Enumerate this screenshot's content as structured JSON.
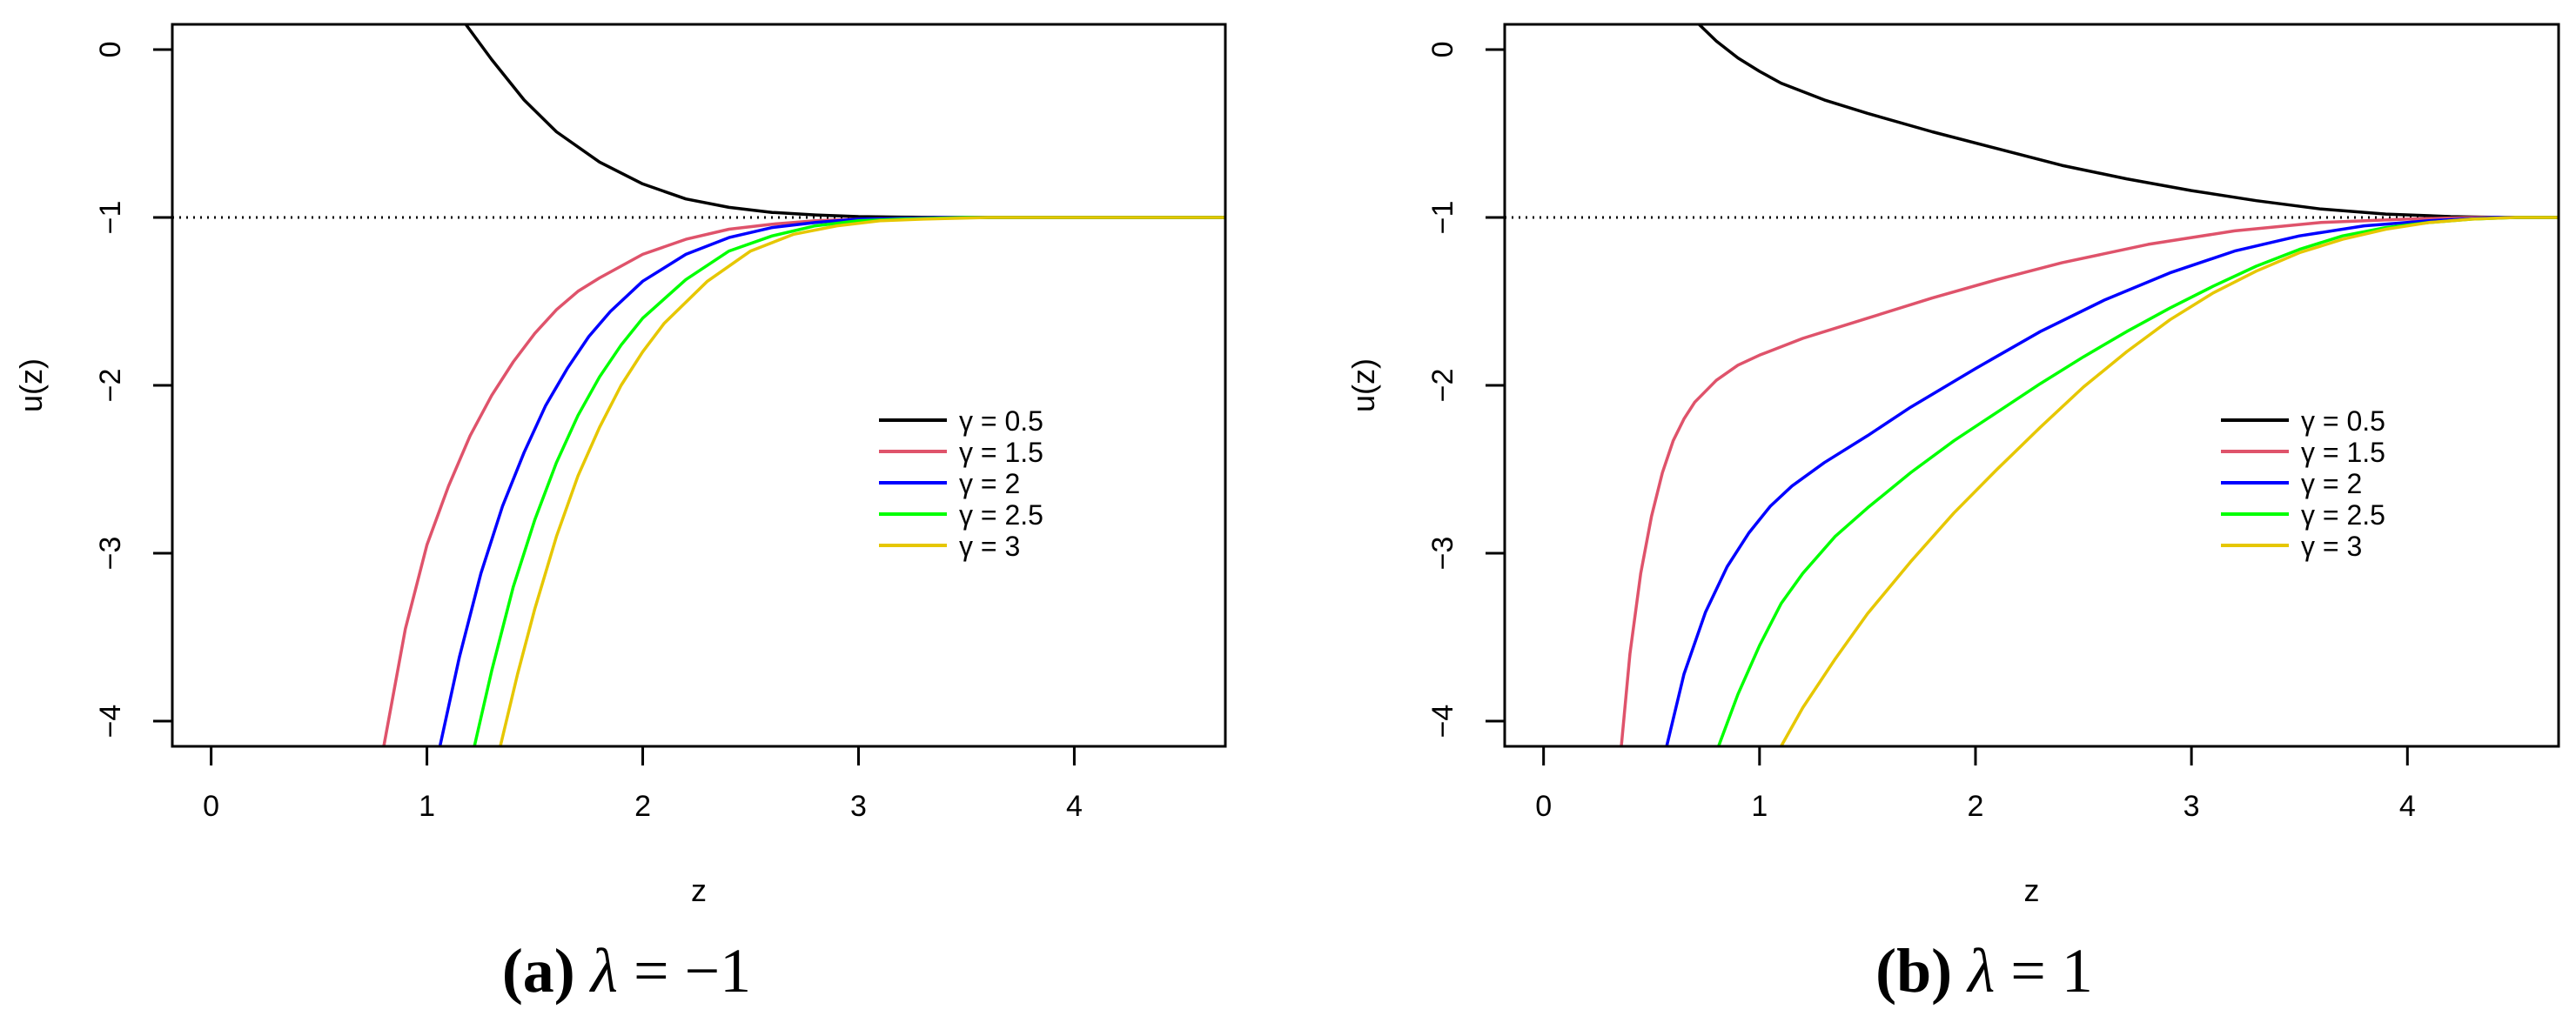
{
  "chart_data": [
    {
      "type": "line",
      "caption": {
        "label": "(a)",
        "symbol": "λ",
        "equals": " = ",
        "value": "−1"
      },
      "xlabel": "z",
      "ylabel": "u(z)",
      "xlim": [
        -0.18,
        4.7
      ],
      "ylim": [
        -4.15,
        0.15
      ],
      "xticks": [
        0,
        1,
        2,
        3,
        4
      ],
      "yticks": [
        0,
        -1,
        -2,
        -3,
        -4
      ],
      "xtick_labels": [
        "0",
        "1",
        "2",
        "3",
        "4"
      ],
      "ytick_labels": [
        "0",
        "−1",
        "−2",
        "−3",
        "−4"
      ],
      "grid": false,
      "legend_position": "right-center",
      "reference_line": {
        "y": -1,
        "style": "dotted"
      },
      "series": [
        {
          "name": "γ = 0.5",
          "color": "#000000",
          "x": [
            1.18,
            1.3,
            1.45,
            1.6,
            1.8,
            2.0,
            2.2,
            2.4,
            2.6,
            2.8,
            3.0,
            3.2,
            3.5,
            4.7
          ],
          "y": [
            0.15,
            -0.06,
            -0.3,
            -0.49,
            -0.67,
            -0.8,
            -0.89,
            -0.94,
            -0.97,
            -0.985,
            -0.995,
            -0.998,
            -1.0,
            -1.0
          ]
        },
        {
          "name": "γ = 1.5",
          "color": "#DF536B",
          "x": [
            0.8,
            0.9,
            1.0,
            1.1,
            1.2,
            1.3,
            1.4,
            1.5,
            1.6,
            1.7,
            1.8,
            2.0,
            2.2,
            2.4,
            2.6,
            2.8,
            3.0,
            3.4,
            4.7
          ],
          "y": [
            -4.15,
            -3.45,
            -2.95,
            -2.6,
            -2.3,
            -2.06,
            -1.86,
            -1.69,
            -1.55,
            -1.44,
            -1.36,
            -1.22,
            -1.13,
            -1.07,
            -1.04,
            -1.02,
            -1.01,
            -1.0,
            -1.0
          ]
        },
        {
          "name": "γ = 2",
          "color": "#0000FF",
          "x": [
            1.06,
            1.15,
            1.25,
            1.35,
            1.45,
            1.55,
            1.65,
            1.75,
            1.85,
            2.0,
            2.2,
            2.4,
            2.6,
            2.8,
            3.0,
            3.4,
            4.7
          ],
          "y": [
            -4.15,
            -3.62,
            -3.12,
            -2.72,
            -2.4,
            -2.12,
            -1.9,
            -1.71,
            -1.56,
            -1.38,
            -1.22,
            -1.12,
            -1.06,
            -1.03,
            -1.01,
            -1.0,
            -1.0
          ]
        },
        {
          "name": "γ = 2.5",
          "color": "#00FF00",
          "x": [
            1.22,
            1.3,
            1.4,
            1.5,
            1.6,
            1.7,
            1.8,
            1.9,
            2.0,
            2.2,
            2.4,
            2.6,
            2.8,
            3.0,
            3.2,
            3.5,
            4.7
          ],
          "y": [
            -4.15,
            -3.7,
            -3.2,
            -2.8,
            -2.46,
            -2.18,
            -1.95,
            -1.76,
            -1.6,
            -1.37,
            -1.2,
            -1.11,
            -1.05,
            -1.02,
            -1.01,
            -1.0,
            -1.0
          ]
        },
        {
          "name": "γ = 3",
          "color": "#E6C700",
          "x": [
            1.34,
            1.42,
            1.5,
            1.6,
            1.7,
            1.8,
            1.9,
            2.0,
            2.1,
            2.3,
            2.5,
            2.7,
            2.9,
            3.1,
            3.3,
            3.6,
            4.7
          ],
          "y": [
            -4.15,
            -3.72,
            -3.33,
            -2.9,
            -2.54,
            -2.25,
            -2.0,
            -1.8,
            -1.63,
            -1.38,
            -1.2,
            -1.1,
            -1.05,
            -1.02,
            -1.01,
            -1.0,
            -1.0
          ]
        }
      ]
    },
    {
      "type": "line",
      "caption": {
        "label": "(b)",
        "symbol": "λ",
        "equals": " = ",
        "value": "1"
      },
      "xlabel": "z",
      "ylabel": "u(z)",
      "xlim": [
        -0.18,
        4.7
      ],
      "ylim": [
        -4.15,
        0.15
      ],
      "xticks": [
        0,
        1,
        2,
        3,
        4
      ],
      "yticks": [
        0,
        -1,
        -2,
        -3,
        -4
      ],
      "xtick_labels": [
        "0",
        "1",
        "2",
        "3",
        "4"
      ],
      "ytick_labels": [
        "0",
        "−1",
        "−2",
        "−3",
        "−4"
      ],
      "grid": false,
      "legend_position": "right-center",
      "reference_line": {
        "y": -1,
        "style": "dotted"
      },
      "series": [
        {
          "name": "γ = 0.5",
          "color": "#000000",
          "x": [
            0.72,
            0.8,
            0.9,
            1.0,
            1.1,
            1.3,
            1.5,
            1.8,
            2.1,
            2.4,
            2.7,
            3.0,
            3.3,
            3.6,
            3.9,
            4.2,
            4.45,
            4.7
          ],
          "y": [
            0.15,
            0.05,
            -0.05,
            -0.13,
            -0.2,
            -0.3,
            -0.38,
            -0.49,
            -0.59,
            -0.69,
            -0.77,
            -0.84,
            -0.9,
            -0.95,
            -0.98,
            -0.995,
            -1.0,
            -1.0
          ]
        },
        {
          "name": "γ = 1.5",
          "color": "#DF536B",
          "x": [
            0.36,
            0.4,
            0.45,
            0.5,
            0.55,
            0.6,
            0.65,
            0.7,
            0.8,
            0.9,
            1.0,
            1.2,
            1.5,
            1.8,
            2.1,
            2.4,
            2.8,
            3.2,
            3.6,
            4.0,
            4.3,
            4.7
          ],
          "y": [
            -4.15,
            -3.6,
            -3.12,
            -2.78,
            -2.52,
            -2.33,
            -2.2,
            -2.1,
            -1.97,
            -1.88,
            -1.82,
            -1.72,
            -1.6,
            -1.48,
            -1.37,
            -1.27,
            -1.16,
            -1.08,
            -1.03,
            -1.01,
            -1.0,
            -1.0
          ]
        },
        {
          "name": "γ = 2",
          "color": "#0000FF",
          "x": [
            0.57,
            0.65,
            0.75,
            0.85,
            0.95,
            1.05,
            1.15,
            1.3,
            1.5,
            1.7,
            2.0,
            2.3,
            2.6,
            2.9,
            3.2,
            3.5,
            3.8,
            4.1,
            4.4,
            4.7
          ],
          "y": [
            -4.15,
            -3.72,
            -3.35,
            -3.08,
            -2.88,
            -2.72,
            -2.6,
            -2.46,
            -2.3,
            -2.13,
            -1.9,
            -1.68,
            -1.49,
            -1.33,
            -1.2,
            -1.11,
            -1.05,
            -1.02,
            -1.0,
            -1.0
          ]
        },
        {
          "name": "γ = 2.5",
          "color": "#00FF00",
          "x": [
            0.81,
            0.9,
            1.0,
            1.1,
            1.2,
            1.35,
            1.5,
            1.7,
            1.9,
            2.1,
            2.3,
            2.5,
            2.7,
            2.9,
            3.1,
            3.3,
            3.5,
            3.7,
            3.9,
            4.1,
            4.3,
            4.5,
            4.7
          ],
          "y": [
            -4.15,
            -3.84,
            -3.55,
            -3.3,
            -3.12,
            -2.9,
            -2.73,
            -2.52,
            -2.33,
            -2.16,
            -1.99,
            -1.83,
            -1.68,
            -1.54,
            -1.41,
            -1.29,
            -1.19,
            -1.11,
            -1.06,
            -1.03,
            -1.01,
            -1.0,
            -1.0
          ]
        },
        {
          "name": "γ = 3",
          "color": "#E6C700",
          "x": [
            1.1,
            1.2,
            1.35,
            1.5,
            1.7,
            1.9,
            2.1,
            2.3,
            2.5,
            2.7,
            2.9,
            3.1,
            3.3,
            3.5,
            3.7,
            3.9,
            4.1,
            4.3,
            4.5,
            4.7
          ],
          "y": [
            -4.15,
            -3.92,
            -3.63,
            -3.36,
            -3.05,
            -2.76,
            -2.5,
            -2.25,
            -2.01,
            -1.8,
            -1.61,
            -1.45,
            -1.32,
            -1.21,
            -1.13,
            -1.07,
            -1.03,
            -1.01,
            -1.0,
            -1.0
          ]
        }
      ]
    }
  ]
}
